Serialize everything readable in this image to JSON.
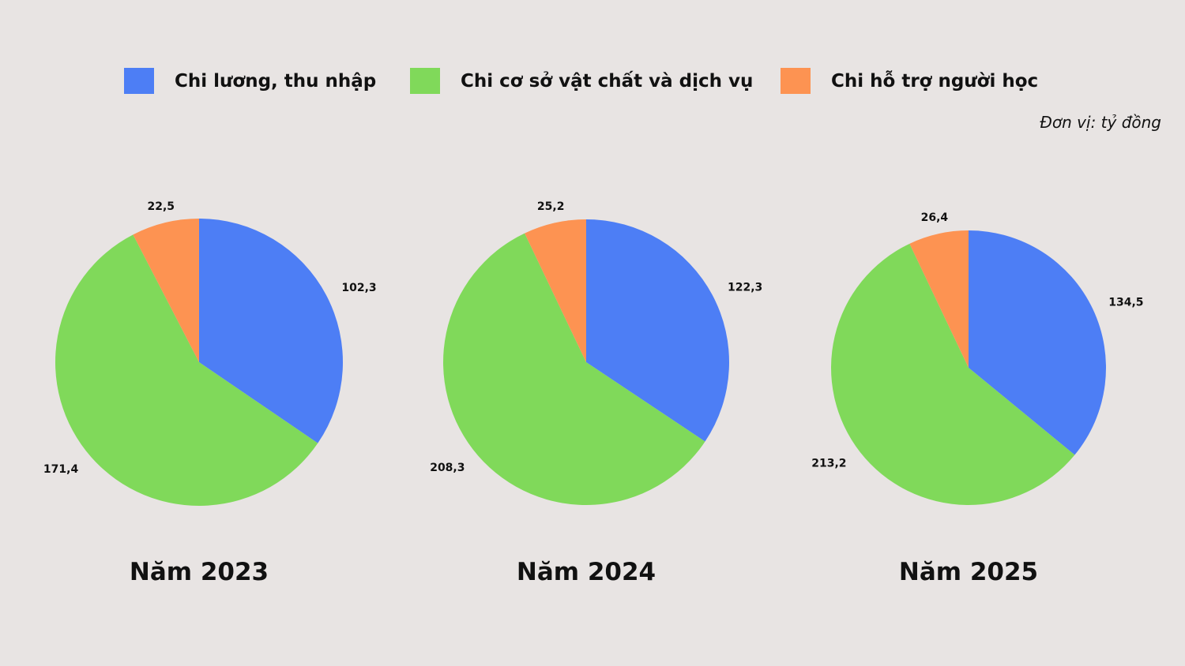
{
  "legend": [
    {
      "label": "Chi lương, thu nhập",
      "color": "#4d7ef5"
    },
    {
      "label": "Chi cơ sở vật chất và dịch vụ",
      "color": "#80d95a"
    },
    {
      "label": "Chi hỗ trợ người học",
      "color": "#fd9352"
    }
  ],
  "unit_note": "Đơn vị: tỷ đồng",
  "chart_data": [
    {
      "type": "pie",
      "title": "Năm 2023",
      "categories": [
        "Chi lương, thu nhập",
        "Chi cơ sở vật chất và dịch vụ",
        "Chi hỗ trợ người học"
      ],
      "values": [
        102.3,
        171.4,
        22.5
      ],
      "value_labels": [
        "102,3",
        "171,4",
        "22,5"
      ],
      "colors": [
        "#4d7ef5",
        "#80d95a",
        "#fd9352"
      ]
    },
    {
      "type": "pie",
      "title": "Năm 2024",
      "categories": [
        "Chi lương, thu nhập",
        "Chi cơ sở vật chất và dịch vụ",
        "Chi hỗ trợ người học"
      ],
      "values": [
        122.3,
        208.3,
        25.2
      ],
      "value_labels": [
        "122,3",
        "208,3",
        "25,2"
      ],
      "colors": [
        "#4d7ef5",
        "#80d95a",
        "#fd9352"
      ]
    },
    {
      "type": "pie",
      "title": "Năm 2025",
      "categories": [
        "Chi lương, thu nhập",
        "Chi cơ sở vật chất và dịch vụ",
        "Chi hỗ trợ người học"
      ],
      "values": [
        134.5,
        213.2,
        26.4
      ],
      "value_labels": [
        "134,5",
        "213,2",
        "26,4"
      ],
      "colors": [
        "#4d7ef5",
        "#80d95a",
        "#fd9352"
      ]
    }
  ]
}
